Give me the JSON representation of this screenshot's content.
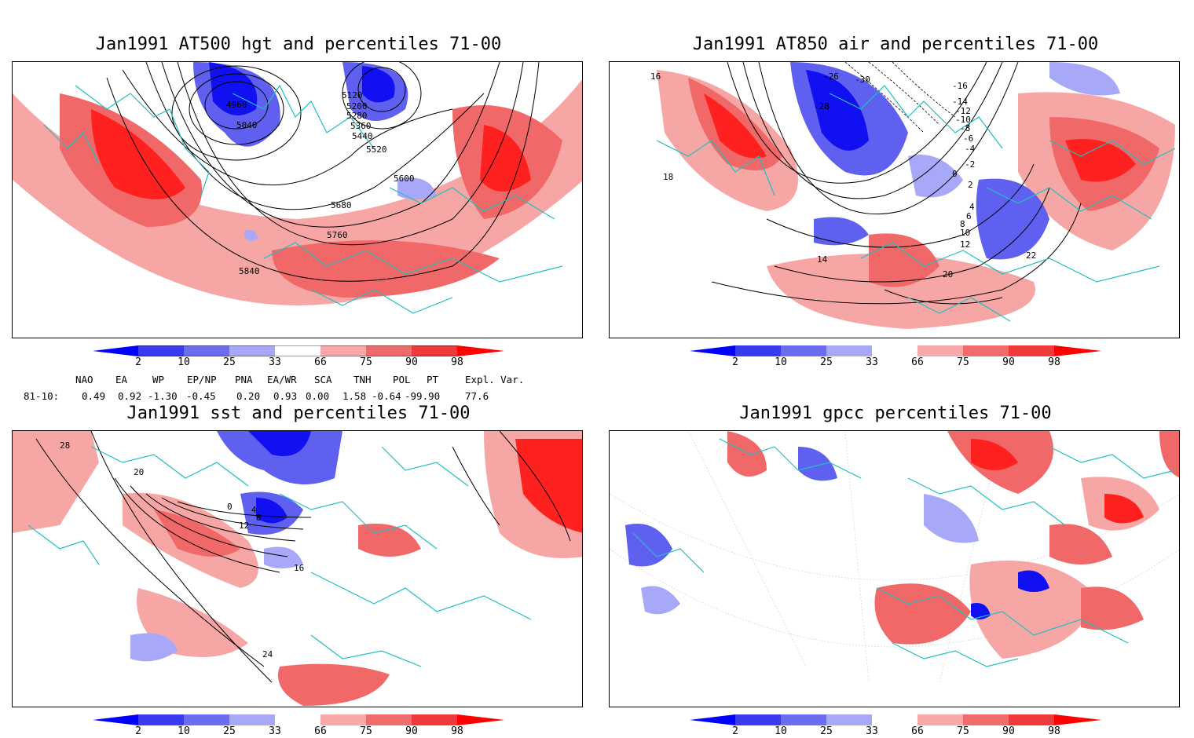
{
  "panels": [
    {
      "title": "Jan1991 AT500 hgt and percentiles 71-00",
      "contour_labels": [
        "4960",
        "5040",
        "5120",
        "5200",
        "5280",
        "5360",
        "5440",
        "5520",
        "5600",
        "5680",
        "5760",
        "5840"
      ]
    },
    {
      "title": "Jan1991 AT850 air and percentiles 71-00",
      "contour_labels": [
        "-26",
        "-28",
        "-30",
        "-16",
        "-14",
        "-12",
        "-10",
        "-8",
        "-6",
        "-4",
        "-2",
        "0",
        "2",
        "4",
        "6",
        "8",
        "10",
        "12",
        "14",
        "16",
        "18",
        "20",
        "22"
      ]
    },
    {
      "title": "Jan1991 sst and percentiles 71-00",
      "contour_labels": [
        "28",
        "20",
        "0",
        "4",
        "8",
        "12",
        "16",
        "24"
      ]
    },
    {
      "title": "Jan1991 gpcc percentiles 71-00"
    }
  ],
  "colorbar": {
    "labels": [
      "2",
      "10",
      "25",
      "33",
      "66",
      "75",
      "90",
      "98"
    ],
    "colors": {
      "deep_blue": "#0000ff",
      "blue1": "#3a3aee",
      "blue2": "#6c6cf0",
      "blue3": "#a8a8f8",
      "white": "#ffffff",
      "red1": "#f8a8a8",
      "red2": "#f06c6c",
      "red3": "#ee3a3a",
      "deep_red": "#ff0000"
    }
  },
  "indices": {
    "headers": [
      "NAO",
      "EA",
      "WP",
      "EP/NP",
      "PNA",
      "EA/WR",
      "SCA",
      "TNH",
      "POL",
      "PT",
      "Expl. Var."
    ],
    "row_label": "81-10:",
    "values": [
      "0.49",
      "0.92",
      "-1.30",
      "-0.45",
      "0.20",
      "0.93",
      "0.00",
      "1.58",
      "-0.64",
      "-99.90",
      "77.6"
    ]
  },
  "map_colors": {
    "coast": "#20c0c0",
    "red_light": "#f7a6a6",
    "red_mid": "#f06868",
    "red_dark": "#ff2020",
    "blue_light": "#a8a8f8",
    "blue_mid": "#6060f0",
    "blue_dark": "#1010f0"
  }
}
